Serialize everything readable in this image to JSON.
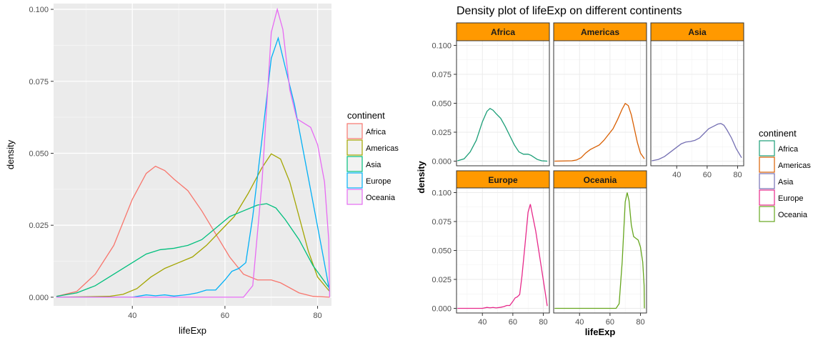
{
  "chart_data": [
    {
      "type": "line",
      "variant": "density",
      "xlabel": "lifeExp",
      "ylabel": "density",
      "xlim": [
        23,
        83
      ],
      "ylim": [
        -0.003,
        0.102
      ],
      "xticks": [
        40,
        60,
        80
      ],
      "yticks": [
        0.0,
        0.025,
        0.05,
        0.075,
        0.1
      ],
      "ytick_labels": [
        "0.000",
        "0.025",
        "0.050",
        "0.075",
        "0.100"
      ],
      "grid": true,
      "legend": {
        "title": "continent",
        "position": "right",
        "entries": [
          "Africa",
          "Americas",
          "Asia",
          "Europe",
          "Oceania"
        ]
      },
      "colors": [
        "#F8766D",
        "#A3A500",
        "#00BF7D",
        "#00B0F6",
        "#E76BF3"
      ],
      "series": [
        {
          "name": "Africa",
          "points": [
            [
              23.6,
              0.0003
            ],
            [
              28,
              0.002
            ],
            [
              32,
              0.008
            ],
            [
              36,
              0.018
            ],
            [
              40,
              0.034
            ],
            [
              43,
              0.043
            ],
            [
              45,
              0.0455
            ],
            [
              47,
              0.044
            ],
            [
              49,
              0.041
            ],
            [
              52,
              0.037
            ],
            [
              55,
              0.03
            ],
            [
              58,
              0.022
            ],
            [
              61,
              0.014
            ],
            [
              64,
              0.008
            ],
            [
              67,
              0.006
            ],
            [
              70,
              0.006
            ],
            [
              72,
              0.005
            ],
            [
              76,
              0.0015
            ],
            [
              79,
              0.0003
            ],
            [
              82.6,
              0.0
            ]
          ]
        },
        {
          "name": "Americas",
          "points": [
            [
              23.6,
              0.0
            ],
            [
              35,
              0.0003
            ],
            [
              38,
              0.001
            ],
            [
              41,
              0.003
            ],
            [
              44,
              0.007
            ],
            [
              47,
              0.01
            ],
            [
              50,
              0.012
            ],
            [
              53,
              0.014
            ],
            [
              56,
              0.018
            ],
            [
              59,
              0.023
            ],
            [
              62,
              0.028
            ],
            [
              65,
              0.036
            ],
            [
              68,
              0.045
            ],
            [
              70,
              0.0498
            ],
            [
              72,
              0.048
            ],
            [
              74,
              0.04
            ],
            [
              76,
              0.028
            ],
            [
              78,
              0.016
            ],
            [
              80,
              0.007
            ],
            [
              82.6,
              0.002
            ]
          ]
        },
        {
          "name": "Asia",
          "points": [
            [
              23.6,
              0.0003
            ],
            [
              28,
              0.0015
            ],
            [
              32,
              0.004
            ],
            [
              36,
              0.008
            ],
            [
              40,
              0.012
            ],
            [
              43,
              0.015
            ],
            [
              46,
              0.0165
            ],
            [
              49,
              0.017
            ],
            [
              52,
              0.018
            ],
            [
              55,
              0.02
            ],
            [
              58,
              0.024
            ],
            [
              61,
              0.028
            ],
            [
              64,
              0.03
            ],
            [
              67,
              0.032
            ],
            [
              69,
              0.0325
            ],
            [
              71,
              0.031
            ],
            [
              73,
              0.027
            ],
            [
              76,
              0.02
            ],
            [
              79,
              0.011
            ],
            [
              82.6,
              0.003
            ]
          ]
        },
        {
          "name": "Europe",
          "points": [
            [
              23.6,
              0.0
            ],
            [
              40,
              0.0
            ],
            [
              43,
              0.0008
            ],
            [
              45,
              0.0005
            ],
            [
              47,
              0.0008
            ],
            [
              49,
              0.0004
            ],
            [
              52,
              0.0009
            ],
            [
              54,
              0.0015
            ],
            [
              56,
              0.0025
            ],
            [
              58,
              0.0025
            ],
            [
              60,
              0.006
            ],
            [
              61.5,
              0.009
            ],
            [
              63,
              0.01
            ],
            [
              64.5,
              0.012
            ],
            [
              66,
              0.028
            ],
            [
              68,
              0.055
            ],
            [
              70,
              0.083
            ],
            [
              71.5,
              0.09
            ],
            [
              73,
              0.08
            ],
            [
              75,
              0.067
            ],
            [
              77,
              0.05
            ],
            [
              79,
              0.033
            ],
            [
              81,
              0.016
            ],
            [
              82.6,
              0.002
            ]
          ]
        },
        {
          "name": "Oceania",
          "points": [
            [
              23.6,
              0.0
            ],
            [
              60,
              0.0
            ],
            [
              64,
              0.0
            ],
            [
              66,
              0.004
            ],
            [
              68,
              0.04
            ],
            [
              70,
              0.092
            ],
            [
              71.3,
              0.1
            ],
            [
              72.5,
              0.093
            ],
            [
              74,
              0.072
            ],
            [
              75.5,
              0.062
            ],
            [
              77,
              0.0605
            ],
            [
              78.5,
              0.059
            ],
            [
              80,
              0.053
            ],
            [
              81.5,
              0.04
            ],
            [
              82.4,
              0.02
            ],
            [
              82.6,
              0.0
            ]
          ]
        }
      ]
    },
    {
      "type": "line",
      "variant": "density-faceted",
      "title": "Density plot of lifeExp on different continents",
      "xlabel": "lifeExp",
      "ylabel": "density",
      "xlim": [
        23,
        84
      ],
      "ylim": [
        -0.004,
        0.104
      ],
      "xticks": [
        40,
        60,
        80
      ],
      "yticks": [
        0.0,
        0.025,
        0.05,
        0.075,
        0.1
      ],
      "ytick_labels": [
        "0.000",
        "0.025",
        "0.050",
        "0.075",
        "0.100"
      ],
      "grid": true,
      "legend": {
        "title": "continent",
        "position": "right",
        "entries": [
          "Africa",
          "Americas",
          "Asia",
          "Europe",
          "Oceania"
        ]
      },
      "colors": [
        "#1B9E77",
        "#D95F02",
        "#7570B3",
        "#E7298A",
        "#66A61E"
      ],
      "strip_color": "#FF9900",
      "facets": [
        {
          "label": "Africa",
          "points": [
            [
              23.6,
              0.0003
            ],
            [
              28,
              0.002
            ],
            [
              32,
              0.008
            ],
            [
              36,
              0.018
            ],
            [
              40,
              0.034
            ],
            [
              43,
              0.043
            ],
            [
              45,
              0.0455
            ],
            [
              47,
              0.044
            ],
            [
              49,
              0.041
            ],
            [
              52,
              0.037
            ],
            [
              55,
              0.03
            ],
            [
              58,
              0.022
            ],
            [
              61,
              0.014
            ],
            [
              64,
              0.008
            ],
            [
              67,
              0.006
            ],
            [
              70,
              0.006
            ],
            [
              72,
              0.005
            ],
            [
              76,
              0.0015
            ],
            [
              79,
              0.0003
            ],
            [
              82.6,
              0.0
            ]
          ]
        },
        {
          "label": "Americas",
          "points": [
            [
              23.6,
              0.0
            ],
            [
              35,
              0.0003
            ],
            [
              38,
              0.001
            ],
            [
              41,
              0.003
            ],
            [
              44,
              0.007
            ],
            [
              47,
              0.01
            ],
            [
              50,
              0.012
            ],
            [
              53,
              0.014
            ],
            [
              56,
              0.018
            ],
            [
              59,
              0.023
            ],
            [
              62,
              0.028
            ],
            [
              65,
              0.036
            ],
            [
              68,
              0.045
            ],
            [
              70,
              0.0498
            ],
            [
              72,
              0.048
            ],
            [
              74,
              0.04
            ],
            [
              76,
              0.028
            ],
            [
              78,
              0.016
            ],
            [
              80,
              0.007
            ],
            [
              82.6,
              0.002
            ]
          ]
        },
        {
          "label": "Asia",
          "points": [
            [
              23.6,
              0.0003
            ],
            [
              28,
              0.0015
            ],
            [
              32,
              0.004
            ],
            [
              36,
              0.008
            ],
            [
              40,
              0.012
            ],
            [
              43,
              0.015
            ],
            [
              46,
              0.0165
            ],
            [
              49,
              0.017
            ],
            [
              52,
              0.018
            ],
            [
              55,
              0.02
            ],
            [
              58,
              0.024
            ],
            [
              61,
              0.028
            ],
            [
              64,
              0.03
            ],
            [
              67,
              0.032
            ],
            [
              69,
              0.0325
            ],
            [
              71,
              0.031
            ],
            [
              73,
              0.027
            ],
            [
              76,
              0.02
            ],
            [
              79,
              0.011
            ],
            [
              82.6,
              0.003
            ]
          ]
        },
        {
          "label": "Europe",
          "points": [
            [
              23.6,
              0.0
            ],
            [
              40,
              0.0
            ],
            [
              43,
              0.0008
            ],
            [
              45,
              0.0005
            ],
            [
              47,
              0.0008
            ],
            [
              49,
              0.0004
            ],
            [
              52,
              0.0009
            ],
            [
              54,
              0.0015
            ],
            [
              56,
              0.0025
            ],
            [
              58,
              0.0025
            ],
            [
              60,
              0.006
            ],
            [
              61.5,
              0.009
            ],
            [
              63,
              0.01
            ],
            [
              64.5,
              0.012
            ],
            [
              66,
              0.028
            ],
            [
              68,
              0.055
            ],
            [
              70,
              0.083
            ],
            [
              71.5,
              0.09
            ],
            [
              73,
              0.08
            ],
            [
              75,
              0.067
            ],
            [
              77,
              0.05
            ],
            [
              79,
              0.033
            ],
            [
              81,
              0.016
            ],
            [
              82.6,
              0.002
            ]
          ]
        },
        {
          "label": "Oceania",
          "points": [
            [
              23.6,
              0.0
            ],
            [
              60,
              0.0
            ],
            [
              64,
              0.0
            ],
            [
              66,
              0.004
            ],
            [
              68,
              0.04
            ],
            [
              70,
              0.092
            ],
            [
              71.3,
              0.1
            ],
            [
              72.5,
              0.093
            ],
            [
              74,
              0.072
            ],
            [
              75.5,
              0.062
            ],
            [
              77,
              0.0605
            ],
            [
              78.5,
              0.059
            ],
            [
              80,
              0.053
            ],
            [
              81.5,
              0.04
            ],
            [
              82.4,
              0.02
            ],
            [
              82.6,
              0.0
            ]
          ]
        }
      ]
    }
  ]
}
